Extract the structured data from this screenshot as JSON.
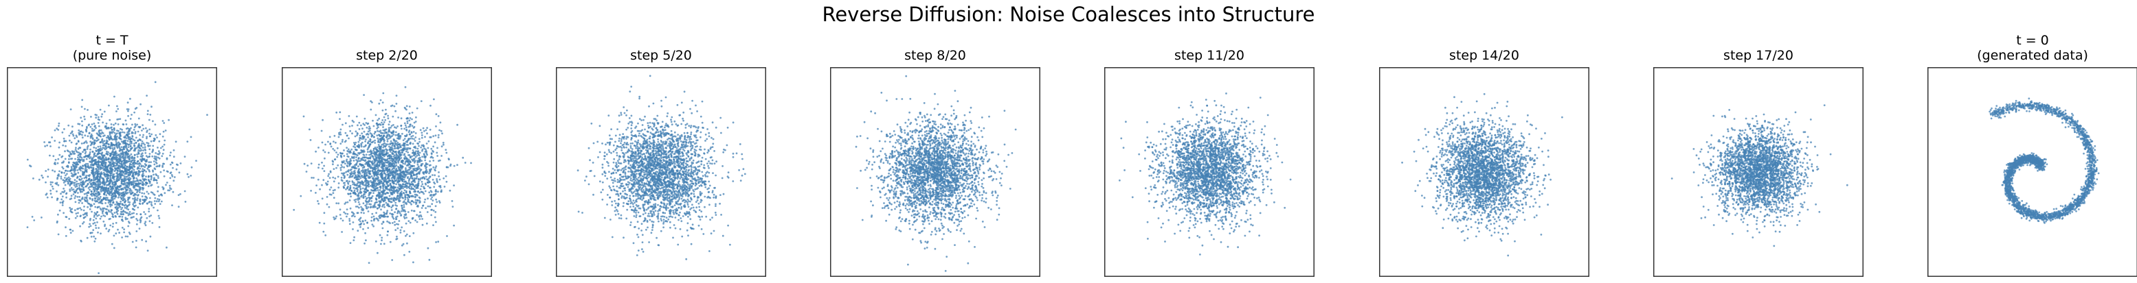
{
  "figure": {
    "title": "Reverse Diffusion: Noise Coalesces into Structure",
    "point_color": "#4682b4",
    "axes_color": "#333333"
  },
  "chart_data": [
    {
      "type": "scatter",
      "title": "t = T\n(pure noise)",
      "dist": "gauss",
      "sigma": 1.0,
      "n": 2600,
      "xlim": [
        -4,
        4
      ],
      "ylim": [
        -4,
        4
      ]
    },
    {
      "type": "scatter",
      "title": "step 2/20",
      "dist": "gauss",
      "sigma": 0.98,
      "n": 2600,
      "xlim": [
        -4,
        4
      ],
      "ylim": [
        -4,
        4
      ]
    },
    {
      "type": "scatter",
      "title": "step 5/20",
      "dist": "gauss",
      "sigma": 0.97,
      "n": 2600,
      "xlim": [
        -4,
        4
      ],
      "ylim": [
        -4,
        4
      ]
    },
    {
      "type": "scatter",
      "title": "step 8/20",
      "dist": "gauss",
      "sigma": 0.95,
      "n": 2600,
      "xlim": [
        -4,
        4
      ],
      "ylim": [
        -4,
        4
      ]
    },
    {
      "type": "scatter",
      "title": "step 11/20",
      "dist": "gauss",
      "sigma": 0.92,
      "n": 2600,
      "xlim": [
        -4,
        4
      ],
      "ylim": [
        -4,
        4
      ]
    },
    {
      "type": "scatter",
      "title": "step 14/20",
      "dist": "gauss",
      "sigma": 0.88,
      "n": 2600,
      "xlim": [
        -4,
        4
      ],
      "ylim": [
        -4,
        4
      ]
    },
    {
      "type": "scatter",
      "title": "step 17/20",
      "dist": "gauss",
      "sigma": 0.8,
      "n": 2600,
      "xlim": [
        -4,
        4
      ],
      "ylim": [
        -4,
        4
      ]
    },
    {
      "type": "scatter",
      "title": "t = 0\n(generated data)",
      "dist": "spiral",
      "n": 2600,
      "xlim": [
        -4,
        4
      ],
      "ylim": [
        -4,
        4
      ]
    }
  ]
}
